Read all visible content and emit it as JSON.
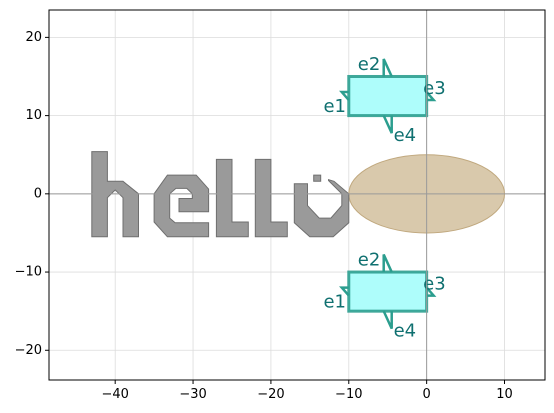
{
  "chart_data": {
    "type": "scatter",
    "title": "",
    "xlabel": "",
    "ylabel": "",
    "xlim": [
      -48.5,
      15.2
    ],
    "ylim": [
      -23.8,
      23.5
    ],
    "grid": true,
    "xticks": [
      {
        "value": -40,
        "label": "−40"
      },
      {
        "value": -30,
        "label": "−30"
      },
      {
        "value": -20,
        "label": "−20"
      },
      {
        "value": -10,
        "label": "−10"
      },
      {
        "value": 0,
        "label": "0"
      },
      {
        "value": 10,
        "label": "10"
      }
    ],
    "yticks": [
      {
        "value": 20,
        "label": "20"
      },
      {
        "value": 10,
        "label": "10"
      },
      {
        "value": 0,
        "label": "0"
      },
      {
        "value": -10,
        "label": "−10"
      },
      {
        "value": -20,
        "label": "−20"
      }
    ],
    "ellipse": {
      "center": [
        0,
        0
      ],
      "width": 20,
      "height": 10,
      "fill": "#d2bf9e",
      "stroke": "#c0a87e"
    },
    "text_polygon": {
      "text": "hello",
      "fill": "#9a9a9a",
      "stroke": "#6f6f6f"
    },
    "components": [
      {
        "name": "top",
        "rect": {
          "x0": -10,
          "y0": 10,
          "x1": 0,
          "y1": 15
        },
        "fill": "#aefdfb",
        "stroke": "#2c9e8f",
        "ports": [
          {
            "label": "e1",
            "x": -10,
            "y": 12.5,
            "dir": "west",
            "label_x": -11.8,
            "label_y": 11.1
          },
          {
            "label": "e2",
            "x": -5,
            "y": 15,
            "dir": "north",
            "label_x": -7.4,
            "label_y": 16.5
          },
          {
            "label": "e3",
            "x": 0,
            "y": 12.5,
            "dir": "east",
            "label_x": 1.0,
            "label_y": 13.4
          },
          {
            "label": "e4",
            "x": -5,
            "y": 10,
            "dir": "south",
            "label_x": -2.8,
            "label_y": 7.4
          }
        ]
      },
      {
        "name": "bottom",
        "rect": {
          "x0": -10,
          "y0": -15,
          "x1": 0,
          "y1": -10
        },
        "fill": "#aefdfb",
        "stroke": "#2c9e8f",
        "ports": [
          {
            "label": "e1",
            "x": -10,
            "y": -12.5,
            "dir": "west",
            "label_x": -11.8,
            "label_y": -13.9
          },
          {
            "label": "e2",
            "x": -5,
            "y": -10,
            "dir": "north",
            "label_x": -7.4,
            "label_y": -8.5
          },
          {
            "label": "e3",
            "x": 0,
            "y": -12.5,
            "dir": "east",
            "label_x": 1.0,
            "label_y": -11.6
          },
          {
            "label": "e4",
            "x": -5,
            "y": -15,
            "dir": "south",
            "label_x": -2.8,
            "label_y": -17.6
          }
        ]
      }
    ]
  }
}
